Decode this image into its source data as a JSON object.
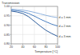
{
  "chart_data": {
    "type": "line",
    "title": "Transmission",
    "x_label": "Temperature [°C]",
    "x": [
      20,
      30,
      40,
      50,
      60,
      70,
      80,
      90,
      100
    ],
    "series": [
      {
        "name": "d = 1 mm",
        "color": "#8fb2de",
        "values": [
          0.985,
          0.983,
          0.98,
          0.975,
          0.968,
          0.96,
          0.952,
          0.945,
          0.94
        ]
      },
      {
        "name": "d = 2 mm",
        "color": "#4a7fc1",
        "values": [
          0.98,
          0.977,
          0.972,
          0.962,
          0.948,
          0.932,
          0.918,
          0.905,
          0.895
        ]
      },
      {
        "name": "d = 3 mm",
        "color": "#2f5f9e",
        "values": [
          0.975,
          0.97,
          0.962,
          0.945,
          0.92,
          0.895,
          0.872,
          0.855,
          0.84
        ]
      }
    ],
    "xlim": [
      20,
      100
    ],
    "xticks": [
      20,
      40,
      60,
      80,
      100
    ],
    "ylim": [
      0.8,
      1.0
    ],
    "yticks": [
      {
        "value": 0.8,
        "label": "0.80"
      },
      {
        "value": 0.85,
        "label": "0.85"
      },
      {
        "value": 0.9,
        "label": "0.90"
      },
      {
        "value": 0.95,
        "label": "0.95"
      },
      {
        "value": 1.0,
        "label": "1.00"
      }
    ],
    "grid": true
  }
}
